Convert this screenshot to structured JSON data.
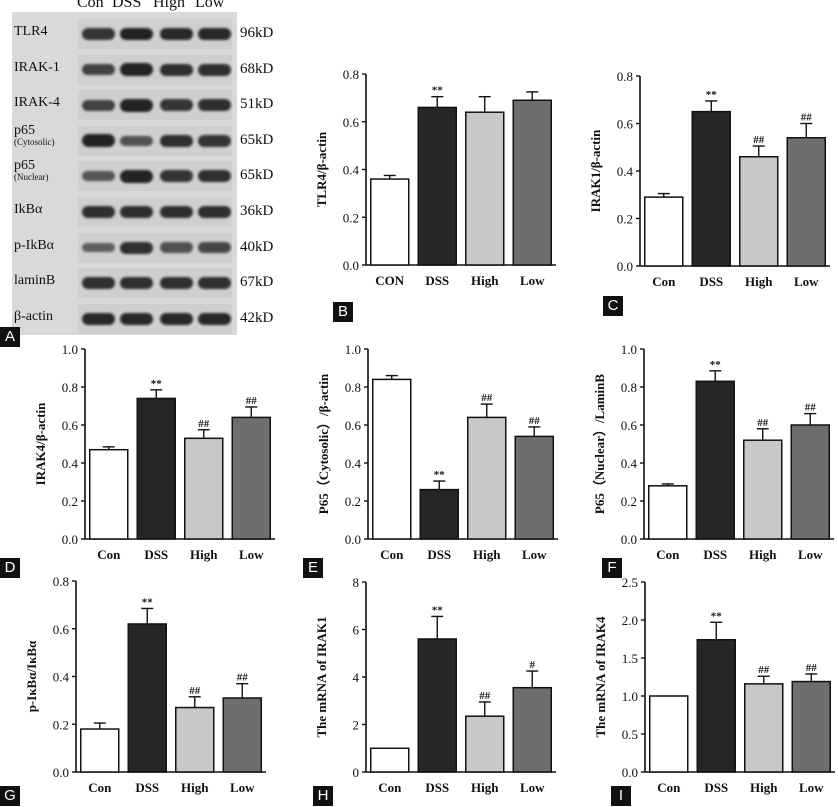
{
  "blot": {
    "lanes": [
      "Con",
      "DSS",
      "High",
      "Low"
    ],
    "rows": [
      {
        "label": "TLR4",
        "sub": "",
        "kd": "96kD",
        "intensity": [
          0.8,
          0.95,
          0.9,
          0.9
        ]
      },
      {
        "label": "IRAK-1",
        "sub": "",
        "kd": "68kD",
        "intensity": [
          0.7,
          0.95,
          0.85,
          0.85
        ]
      },
      {
        "label": "IRAK-4",
        "sub": "",
        "kd": "51kD",
        "intensity": [
          0.7,
          0.95,
          0.8,
          0.85
        ]
      },
      {
        "label": "p65",
        "sub": "(Cytosolic)",
        "kd": "65kD",
        "intensity": [
          0.95,
          0.55,
          0.85,
          0.8
        ]
      },
      {
        "label": "p65",
        "sub": "(Nuclear)",
        "kd": "65kD",
        "intensity": [
          0.5,
          0.95,
          0.8,
          0.85
        ]
      },
      {
        "label": "IkBα",
        "sub": "",
        "kd": "36kD",
        "intensity": [
          0.85,
          0.85,
          0.85,
          0.85
        ]
      },
      {
        "label": "p-IkBα",
        "sub": "",
        "kd": "40kD",
        "intensity": [
          0.45,
          0.85,
          0.55,
          0.65
        ]
      },
      {
        "label": "laminB",
        "sub": "",
        "kd": "67kD",
        "intensity": [
          0.85,
          0.85,
          0.85,
          0.85
        ]
      },
      {
        "label": "β-actin",
        "sub": "",
        "kd": "42kD",
        "intensity": [
          0.9,
          0.9,
          0.9,
          0.9
        ]
      }
    ]
  },
  "panel_letters": [
    "A",
    "B",
    "C",
    "D",
    "E",
    "F",
    "G",
    "H",
    "I"
  ],
  "colors": {
    "con": "#ffffff",
    "dss": "#262626",
    "high": "#c8c8c8",
    "low": "#6e6e6e",
    "axis": "#111111"
  },
  "chart_data": [
    {
      "panel": "B",
      "type": "bar",
      "categories": [
        "CON",
        "DSS",
        "High",
        "Low"
      ],
      "values": [
        0.36,
        0.66,
        0.64,
        0.69
      ],
      "errors": [
        0.015,
        0.045,
        0.065,
        0.035
      ],
      "annotations": [
        "",
        "**",
        "",
        ""
      ],
      "ylabel": "TLR4/β-actin",
      "ylim": [
        0,
        0.8
      ],
      "yticks": [
        "0.0",
        "0.2",
        "0.4",
        "0.6",
        "0.8"
      ]
    },
    {
      "panel": "C",
      "type": "bar",
      "categories": [
        "Con",
        "DSS",
        "High",
        "Low"
      ],
      "values": [
        0.29,
        0.65,
        0.46,
        0.54
      ],
      "errors": [
        0.015,
        0.045,
        0.045,
        0.06
      ],
      "annotations": [
        "",
        "**",
        "##",
        "##"
      ],
      "ylabel": "IRAK1/β-actin",
      "ylim": [
        0,
        0.8
      ],
      "yticks": [
        "0.0",
        "0.2",
        "0.4",
        "0.6",
        "0.8"
      ]
    },
    {
      "panel": "D",
      "type": "bar",
      "categories": [
        "Con",
        "DSS",
        "High",
        "Low"
      ],
      "values": [
        0.47,
        0.74,
        0.53,
        0.64
      ],
      "errors": [
        0.015,
        0.045,
        0.045,
        0.055
      ],
      "annotations": [
        "",
        "**",
        "##",
        "##"
      ],
      "ylabel": "IRAK4/β-actin",
      "ylim": [
        0,
        1.0
      ],
      "yticks": [
        "0.0",
        "0.2",
        "0.4",
        "0.6",
        "0.8",
        "1.0"
      ]
    },
    {
      "panel": "E",
      "type": "bar",
      "categories": [
        "Con",
        "DSS",
        "High",
        "Low"
      ],
      "values": [
        0.84,
        0.26,
        0.64,
        0.54
      ],
      "errors": [
        0.02,
        0.045,
        0.07,
        0.05
      ],
      "annotations": [
        "",
        "**",
        "##",
        "##"
      ],
      "ylabel": "P65（Cytosolic）/β-actin",
      "ylim": [
        0,
        1.0
      ],
      "yticks": [
        "0.0",
        "0.2",
        "0.4",
        "0.6",
        "0.8",
        "1.0"
      ]
    },
    {
      "panel": "F",
      "type": "bar",
      "categories": [
        "Con",
        "DSS",
        "High",
        "Low"
      ],
      "values": [
        0.28,
        0.83,
        0.52,
        0.6
      ],
      "errors": [
        0.01,
        0.055,
        0.06,
        0.06
      ],
      "annotations": [
        "",
        "**",
        "##",
        "##"
      ],
      "ylabel": "P65（Nuclear）/LaminB",
      "ylim": [
        0,
        1.0
      ],
      "yticks": [
        "0.0",
        "0.2",
        "0.4",
        "0.6",
        "0.8",
        "1.0"
      ]
    },
    {
      "panel": "G",
      "type": "bar",
      "categories": [
        "Con",
        "DSS",
        "High",
        "Low"
      ],
      "values": [
        0.18,
        0.62,
        0.27,
        0.31
      ],
      "errors": [
        0.025,
        0.065,
        0.045,
        0.06
      ],
      "annotations": [
        "",
        "**",
        "##",
        "##"
      ],
      "ylabel": "p-IκBα/IκBα",
      "ylim": [
        0,
        0.8
      ],
      "yticks": [
        "0.0",
        "0.2",
        "0.4",
        "0.6",
        "0.8"
      ]
    },
    {
      "panel": "H",
      "type": "bar",
      "categories": [
        "Con",
        "DSS",
        "High",
        "Low"
      ],
      "values": [
        1.0,
        5.6,
        2.35,
        3.55
      ],
      "errors": [
        0,
        0.95,
        0.6,
        0.7
      ],
      "annotations": [
        "",
        "**",
        "##",
        "#"
      ],
      "ylabel": "The mRNA of IRAK1",
      "ylim": [
        0,
        8
      ],
      "yticks": [
        "0",
        "2",
        "4",
        "6",
        "8"
      ]
    },
    {
      "panel": "I",
      "type": "bar",
      "categories": [
        "Con",
        "DSS",
        "High",
        "Low"
      ],
      "values": [
        1.0,
        1.74,
        1.16,
        1.19
      ],
      "errors": [
        0,
        0.23,
        0.1,
        0.1
      ],
      "annotations": [
        "",
        "**",
        "##",
        "##"
      ],
      "ylabel": "The mRNA of IRAK4",
      "ylim": [
        0,
        2.5
      ],
      "yticks": [
        "0.0",
        "0.5",
        "1.0",
        "1.5",
        "2.0",
        "2.5"
      ]
    }
  ]
}
